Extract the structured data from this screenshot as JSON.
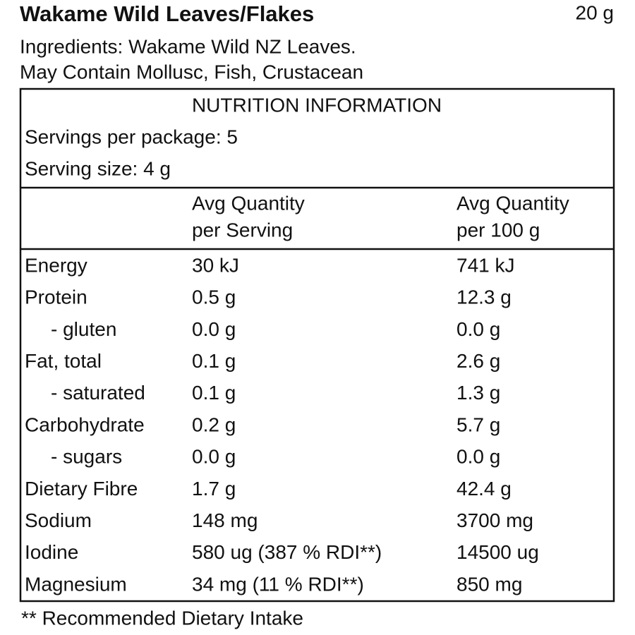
{
  "header": {
    "title": "Wakame Wild Leaves/Flakes",
    "weight": "20 g",
    "ingredients": "Ingredients: Wakame Wild NZ Leaves.",
    "allergens": "May Contain Mollusc, Fish, Crustacean"
  },
  "table": {
    "title": "NUTRITION INFORMATION",
    "servings_per_package": "Servings per package: 5",
    "serving_size": "Serving size: 4 g",
    "columns": [
      [
        "Avg Quantity",
        "per Serving"
      ],
      [
        "Avg Quantity",
        "per 100 g"
      ]
    ],
    "rows": [
      [
        "Energy",
        "30 kJ",
        "741 kJ"
      ],
      [
        "Protein",
        "0.5 g",
        "12.3 g"
      ],
      [
        "- gluten",
        "0.0 g",
        "0.0 g"
      ],
      [
        "Fat, total",
        "0.1 g",
        "2.6 g"
      ],
      [
        "- saturated",
        "0.1 g",
        "1.3 g"
      ],
      [
        "Carbohydrate",
        "0.2 g",
        "5.7 g"
      ],
      [
        "- sugars",
        "0.0 g",
        "0.0 g"
      ],
      [
        "Dietary Fibre",
        "1.7 g",
        "42.4 g"
      ],
      [
        "Sodium",
        "148 mg",
        "3700 mg"
      ],
      [
        "Iodine",
        "580 ug (387 % RDI**)",
        "14500 ug"
      ],
      [
        "Magnesium",
        "34 mg (11 % RDI**)",
        "850 mg"
      ]
    ]
  },
  "footer": {
    "note": "** Recommended Dietary Intake"
  }
}
